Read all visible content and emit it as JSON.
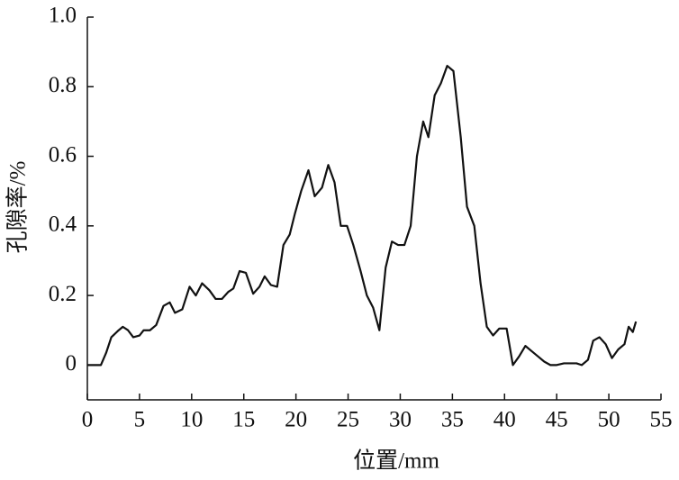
{
  "chart_data": {
    "type": "line",
    "xlabel": "位置/mm",
    "ylabel": "孔隙率/%",
    "x": [
      0,
      1.3,
      1.8,
      2.3,
      3.0,
      3.4,
      3.9,
      4.4,
      5.0,
      5.4,
      6.0,
      6.6,
      7.3,
      7.9,
      8.4,
      9.1,
      9.8,
      10.4,
      11.0,
      11.7,
      12.3,
      12.9,
      13.5,
      14.0,
      14.6,
      15.2,
      15.9,
      16.5,
      17.0,
      17.6,
      18.2,
      18.8,
      19.4,
      19.9,
      20.5,
      21.2,
      21.8,
      22.5,
      23.1,
      23.7,
      24.3,
      24.9,
      25.5,
      26.2,
      26.8,
      27.4,
      28.0,
      28.6,
      29.2,
      29.8,
      30.4,
      31.0,
      31.6,
      32.2,
      32.7,
      33.3,
      33.9,
      34.5,
      35.1,
      35.8,
      36.4,
      37.1,
      37.7,
      38.3,
      38.9,
      39.5,
      40.2,
      40.8,
      41.4,
      42.0,
      42.6,
      43.2,
      43.8,
      44.4,
      45.0,
      45.7,
      46.3,
      46.9,
      47.4,
      48.0,
      48.5,
      49.1,
      49.7,
      50.3,
      50.9,
      51.5,
      51.9,
      52.3,
      52.6
    ],
    "series": [
      {
        "color": "#111111",
        "values": [
          0,
          0,
          0.035,
          0.08,
          0.1,
          0.11,
          0.1,
          0.08,
          0.085,
          0.1,
          0.1,
          0.115,
          0.17,
          0.18,
          0.15,
          0.16,
          0.225,
          0.2,
          0.235,
          0.215,
          0.19,
          0.19,
          0.21,
          0.22,
          0.27,
          0.265,
          0.205,
          0.225,
          0.255,
          0.23,
          0.225,
          0.345,
          0.375,
          0.435,
          0.5,
          0.56,
          0.485,
          0.51,
          0.575,
          0.525,
          0.4,
          0.4,
          0.345,
          0.27,
          0.2,
          0.165,
          0.1,
          0.28,
          0.355,
          0.345,
          0.345,
          0.4,
          0.6,
          0.7,
          0.655,
          0.775,
          0.81,
          0.86,
          0.845,
          0.655,
          0.455,
          0.4,
          0.235,
          0.11,
          0.085,
          0.105,
          0.105,
          0,
          0.025,
          0.055,
          0.04,
          0.025,
          0.01,
          0,
          0,
          0.005,
          0.005,
          0.005,
          0,
          0.015,
          0.07,
          0.08,
          0.06,
          0.02,
          0.045,
          0.06,
          0.11,
          0.095,
          0.125
        ]
      }
    ],
    "xlim": [
      0,
      55
    ],
    "xticks": [
      0,
      5,
      10,
      15,
      20,
      25,
      30,
      35,
      40,
      45,
      50,
      55
    ],
    "ylim": [
      -0.1,
      1.0
    ],
    "yticks": [
      0,
      0.2,
      0.4,
      0.6,
      0.8,
      {
        "value": 1.0,
        "label": "1.0"
      }
    ]
  }
}
